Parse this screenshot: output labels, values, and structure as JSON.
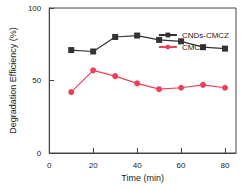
{
  "chart_data": {
    "type": "line",
    "x_label": "Time (min)",
    "y_label": "Degradation Efficiency (%)",
    "x": [
      10,
      20,
      30,
      40,
      50,
      60,
      70,
      80
    ],
    "series": [
      {
        "name": "CNDs-CMCZ",
        "color": "#333333",
        "marker": "square",
        "values": [
          71,
          70,
          80,
          81,
          78,
          77,
          73,
          72
        ]
      },
      {
        "name": "CMCZ",
        "color": "#f0405a",
        "marker": "circle",
        "values": [
          42,
          57,
          53,
          48,
          44,
          45,
          47,
          45
        ]
      }
    ],
    "xlim": [
      0,
      85
    ],
    "xticks": [
      0,
      20,
      40,
      60,
      80
    ],
    "ylim": [
      0,
      100
    ],
    "yticks": [
      0,
      50,
      100
    ],
    "grid": false,
    "legend": "upper right"
  }
}
